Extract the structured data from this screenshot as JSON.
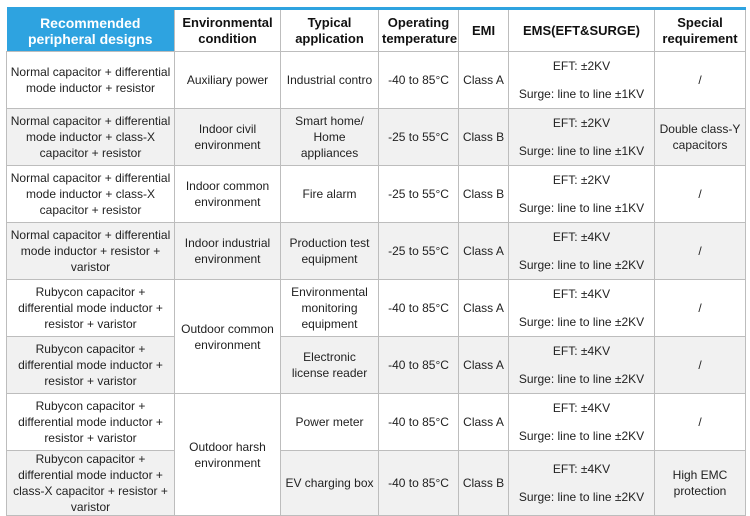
{
  "headers": {
    "design": "Recommended peripheral designs",
    "environment": "Environmental condition",
    "application": "Typical application",
    "temperature": "Operating temperature",
    "emi": "EMI",
    "ems": "EMS(EFT&SURGE)",
    "special": "Special requirement"
  },
  "environments": {
    "auxiliary": "Auxiliary power",
    "indoor_civil": "Indoor civil environment",
    "indoor_common": "Indoor common environment",
    "indoor_industrial": "Indoor industrial environment",
    "outdoor_common": "Outdoor common environment",
    "outdoor_harsh": "Outdoor harsh environment"
  },
  "rows": [
    {
      "design": "Normal capacitor + differential mode inductor + resistor",
      "application": "Industrial contro",
      "temperature": "-40 to 85°C",
      "emi": "Class A",
      "eft": "EFT: ±2KV",
      "surge": "Surge: line to line ±1KV",
      "special": "/"
    },
    {
      "design": "Normal capacitor + differential mode inductor + class-X capacitor + resistor",
      "application": "Smart home/ Home appliances",
      "temperature": "-25 to 55°C",
      "emi": "Class B",
      "eft": "EFT: ±2KV",
      "surge": "Surge: line to line ±1KV",
      "special": "Double class-Y capacitors"
    },
    {
      "design": "Normal capacitor + differential mode inductor + class-X capacitor + resistor",
      "application": "Fire alarm",
      "temperature": "-25 to 55°C",
      "emi": "Class B",
      "eft": "EFT: ±2KV",
      "surge": "Surge: line to line ±1KV",
      "special": "/"
    },
    {
      "design": "Normal capacitor + differential mode inductor + resistor + varistor",
      "application": "Production test equipment",
      "temperature": "-25 to 55°C",
      "emi": "Class A",
      "eft": "EFT: ±4KV",
      "surge": "Surge: line to line ±2KV",
      "special": "/"
    },
    {
      "design": "Rubycon capacitor + differential mode inductor + resistor + varistor",
      "application": "Environmental monitoring equipment",
      "temperature": "-40 to 85°C",
      "emi": "Class A",
      "eft": "EFT: ±4KV",
      "surge": "Surge: line to line ±2KV",
      "special": "/"
    },
    {
      "design": "Rubycon capacitor + differential mode inductor + resistor + varistor",
      "application": "Electronic license reader",
      "temperature": "-40 to 85°C",
      "emi": "Class A",
      "eft": "EFT: ±4KV",
      "surge": "Surge: line to line ±2KV",
      "special": "/"
    },
    {
      "design": "Rubycon capacitor + differential mode inductor + resistor + varistor",
      "application": "Power meter",
      "temperature": "-40 to 85°C",
      "emi": "Class A",
      "eft": "EFT: ±4KV",
      "surge": "Surge: line to line ±2KV",
      "special": "/"
    },
    {
      "design": "Rubycon capacitor + differential mode inductor + class-X capacitor + resistor + varistor",
      "application": "EV charging box",
      "temperature": "-40 to 85°C",
      "emi": "Class B",
      "eft": "EFT: ±4KV",
      "surge": "Surge: line to line ±2KV",
      "special": "High EMC protection"
    }
  ],
  "colors": {
    "header_accent": "#2ea3e0",
    "row_alt": "#f1f1f1",
    "border": "#bdbdbd"
  }
}
